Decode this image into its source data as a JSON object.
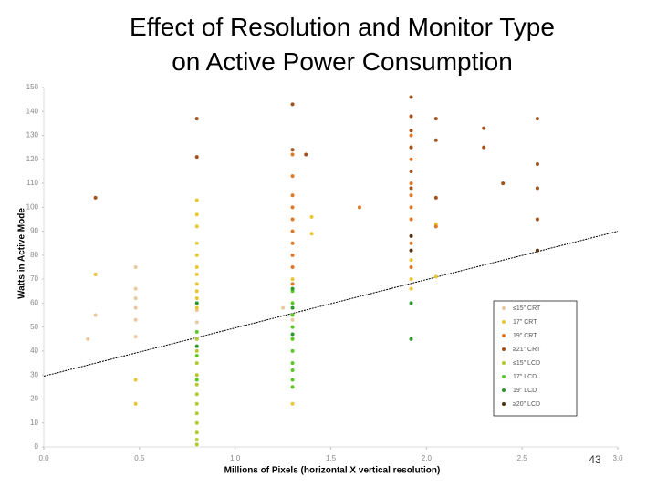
{
  "chart_data": {
    "type": "scatter",
    "title": "Effect of Resolution and Monitor Type on Active Power Consumption",
    "x_label": "Millions of Pixels (horizontal X vertical resolution)",
    "y_label": "Watts in Active Mode",
    "slide_number": "43",
    "xlim": [
      0,
      3
    ],
    "xticks": [
      {
        "value": 0,
        "label": "0.0"
      },
      0.5,
      {
        "value": 1,
        "label": "1.0"
      },
      1.5,
      {
        "value": 2,
        "label": "2.0"
      },
      2.5,
      {
        "value": 3,
        "label": "3.0"
      }
    ],
    "ylim": [
      0,
      150
    ],
    "yticks": [
      0,
      10,
      20,
      30,
      40,
      50,
      60,
      70,
      80,
      90,
      100,
      110,
      120,
      130,
      140,
      150
    ],
    "trendline": {
      "color": "#000000",
      "x": [
        0,
        3
      ],
      "y": [
        29.5,
        90
      ]
    },
    "series": [
      {
        "name": "≤15\" CRT",
        "color": "#e8c9a0",
        "x": [
          0.23,
          0.27,
          0.27,
          0.48,
          0.48,
          0.48,
          0.48,
          0.48,
          0.48,
          0.8,
          0.8,
          0.8,
          1.25,
          1.3
        ],
        "y": [
          45,
          72,
          55,
          75,
          66,
          62,
          58,
          53,
          46,
          57,
          52,
          45,
          58,
          53
        ]
      },
      {
        "name": "17\" CRT",
        "color": "#e8c832",
        "x": [
          0.27,
          0.48,
          0.48,
          0.8,
          0.8,
          0.8,
          0.8,
          0.8,
          0.8,
          0.8,
          0.8,
          0.8,
          0.8,
          0.8,
          1.3,
          1.3,
          1.3,
          1.3,
          1.4,
          1.4,
          1.92,
          1.92,
          1.92,
          2.05,
          2.05
        ],
        "y": [
          72,
          28,
          18,
          103,
          97,
          92,
          85,
          80,
          75,
          72,
          68,
          65,
          62,
          58,
          70,
          45,
          25,
          18,
          96,
          89,
          78,
          70,
          66,
          93,
          71
        ]
      },
      {
        "name": "19\" CRT",
        "color": "#e07828",
        "x": [
          1.3,
          1.3,
          1.3,
          1.3,
          1.3,
          1.3,
          1.3,
          1.3,
          1.3,
          1.3,
          1.65,
          1.92,
          1.92,
          1.92,
          1.92,
          1.92,
          1.92,
          1.92,
          1.92,
          1.92,
          1.92,
          2.05
        ],
        "y": [
          122,
          113,
          105,
          100,
          95,
          90,
          85,
          80,
          75,
          68,
          100,
          130,
          125,
          120,
          115,
          110,
          105,
          100,
          95,
          85,
          75,
          92
        ]
      },
      {
        "name": "≥21\" CRT",
        "color": "#a0521e",
        "x": [
          0.27,
          0.8,
          0.8,
          1.3,
          1.3,
          1.37,
          1.92,
          1.92,
          1.92,
          1.92,
          1.92,
          1.92,
          2.05,
          2.05,
          2.05,
          2.3,
          2.3,
          2.4,
          2.58,
          2.58,
          2.58,
          2.58
        ],
        "y": [
          104,
          137,
          121,
          143,
          124,
          122,
          146,
          138,
          132,
          125,
          115,
          108,
          137,
          128,
          104,
          133,
          125,
          110,
          137,
          118,
          108,
          95
        ]
      },
      {
        "name": "≤15\" LCD",
        "color": "#b4c832",
        "x": [
          0.8,
          0.8,
          0.8,
          0.8,
          0.8,
          0.8,
          0.8,
          0.8,
          0.8,
          0.8,
          0.8,
          0.8
        ],
        "y": [
          45,
          40,
          35,
          30,
          26,
          22,
          18,
          14,
          10,
          6,
          3,
          1
        ]
      },
      {
        "name": "17\" LCD",
        "color": "#5ac828",
        "x": [
          0.8,
          0.8,
          0.8,
          1.3,
          1.3,
          1.3,
          1.3,
          1.3,
          1.3,
          1.3,
          1.3,
          1.3,
          1.3
        ],
        "y": [
          48,
          38,
          28,
          65,
          60,
          55,
          50,
          45,
          40,
          35,
          32,
          28,
          25
        ]
      },
      {
        "name": "19\" LCD",
        "color": "#2a9a2a",
        "x": [
          0.8,
          0.8,
          1.3,
          1.3,
          1.3,
          1.92,
          1.92
        ],
        "y": [
          60,
          42,
          66,
          58,
          47,
          60,
          45
        ]
      },
      {
        "name": "≥20\" LCD",
        "color": "#503010",
        "x": [
          1.92,
          1.92,
          2.58
        ],
        "y": [
          88,
          82,
          82
        ]
      }
    ]
  }
}
